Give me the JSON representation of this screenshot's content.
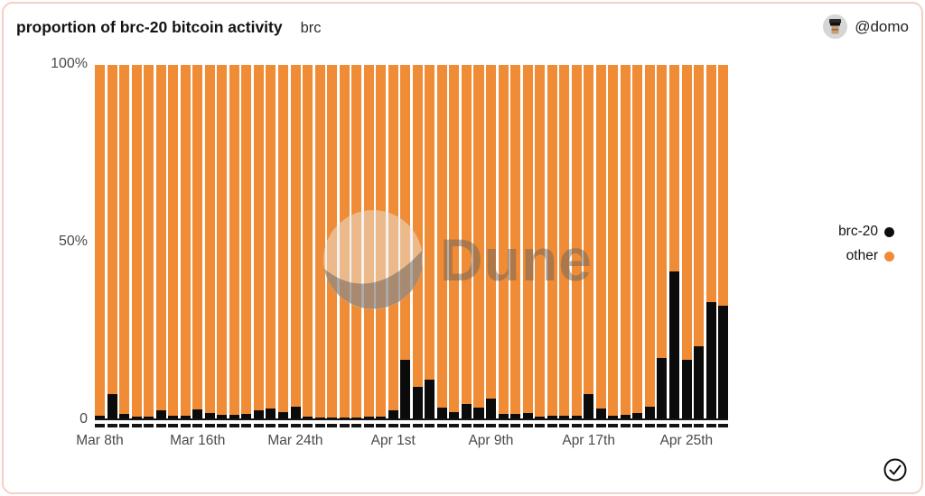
{
  "header": {
    "title": "proportion of brc-20 bitcoin activity",
    "subtitle": "brc",
    "username": "@domo",
    "avatar_icon": "pixel-character-avatar"
  },
  "legend": {
    "items": [
      {
        "label": "brc-20",
        "color": "#0e0e0e"
      },
      {
        "label": "other",
        "color": "#ef8c35"
      }
    ]
  },
  "watermark": {
    "text": "Dune",
    "logo_icon": "dune-logo"
  },
  "status": {
    "check_icon": "circled-checkmark"
  },
  "colors": {
    "bar_other": "#ef8c35",
    "bar_brc20": "#0b0b0b",
    "card_border": "#f6cfc4",
    "axis_text": "#4a4a4a"
  },
  "chart_data": {
    "type": "bar",
    "stacked": true,
    "stack_total": 100,
    "unit": "%",
    "title": "proportion of brc-20 bitcoin activity",
    "ylim": [
      0,
      100
    ],
    "grid": false,
    "legend_position": "right",
    "y_ticks": [
      "100%",
      "50%",
      "0"
    ],
    "x_tick_labels": [
      "Mar 8th",
      "Mar 16th",
      "Mar 24th",
      "Apr 1st",
      "Apr 9th",
      "Apr 17th",
      "Apr 25th"
    ],
    "x_tick_indices": [
      0,
      8,
      16,
      24,
      32,
      40,
      48
    ],
    "x": [
      "Mar 8",
      "Mar 9",
      "Mar 10",
      "Mar 11",
      "Mar 12",
      "Mar 13",
      "Mar 14",
      "Mar 15",
      "Mar 16",
      "Mar 17",
      "Mar 18",
      "Mar 19",
      "Mar 20",
      "Mar 21",
      "Mar 22",
      "Mar 23",
      "Mar 24",
      "Mar 25",
      "Mar 26",
      "Mar 27",
      "Mar 28",
      "Mar 29",
      "Mar 30",
      "Mar 31",
      "Apr 1",
      "Apr 2",
      "Apr 3",
      "Apr 4",
      "Apr 5",
      "Apr 6",
      "Apr 7",
      "Apr 8",
      "Apr 9",
      "Apr 10",
      "Apr 11",
      "Apr 12",
      "Apr 13",
      "Apr 14",
      "Apr 15",
      "Apr 16",
      "Apr 17",
      "Apr 18",
      "Apr 19",
      "Apr 20",
      "Apr 21",
      "Apr 22",
      "Apr 23",
      "Apr 24",
      "Apr 25",
      "Apr 26",
      "Apr 27",
      "Apr 28"
    ],
    "series": [
      {
        "name": "brc-20",
        "color": "#0b0b0b",
        "values": [
          0.8,
          7,
          1.4,
          0.4,
          0.5,
          2.2,
          0.8,
          0.7,
          2.6,
          1.5,
          1,
          1,
          1.3,
          2.2,
          2.8,
          1.9,
          3.2,
          0.4,
          0.3,
          0.3,
          0.3,
          0.3,
          0.4,
          0.4,
          2.4,
          16.5,
          9,
          11,
          3,
          1.8,
          4.2,
          3,
          5.5,
          1.2,
          1.3,
          1.5,
          0.6,
          0.7,
          0.7,
          0.8,
          6.8,
          2.8,
          0.8,
          1,
          1.5,
          3.2,
          17,
          41.5,
          16.5,
          20.5,
          33,
          32
        ]
      },
      {
        "name": "other",
        "color": "#ef8c35",
        "values": [
          99.2,
          93,
          98.6,
          99.6,
          99.5,
          97.8,
          99.2,
          99.3,
          97.4,
          98.5,
          99,
          99,
          98.7,
          97.8,
          97.2,
          98.1,
          96.8,
          99.6,
          99.7,
          99.7,
          99.7,
          99.7,
          99.6,
          99.6,
          97.6,
          83.5,
          91,
          89,
          97,
          98.2,
          95.8,
          97,
          94.5,
          98.8,
          98.7,
          98.5,
          99.4,
          99.3,
          99.3,
          99.2,
          93.2,
          97.2,
          99.2,
          99,
          98.5,
          96.8,
          83,
          58.5,
          83.5,
          79.5,
          67,
          68
        ]
      }
    ]
  }
}
